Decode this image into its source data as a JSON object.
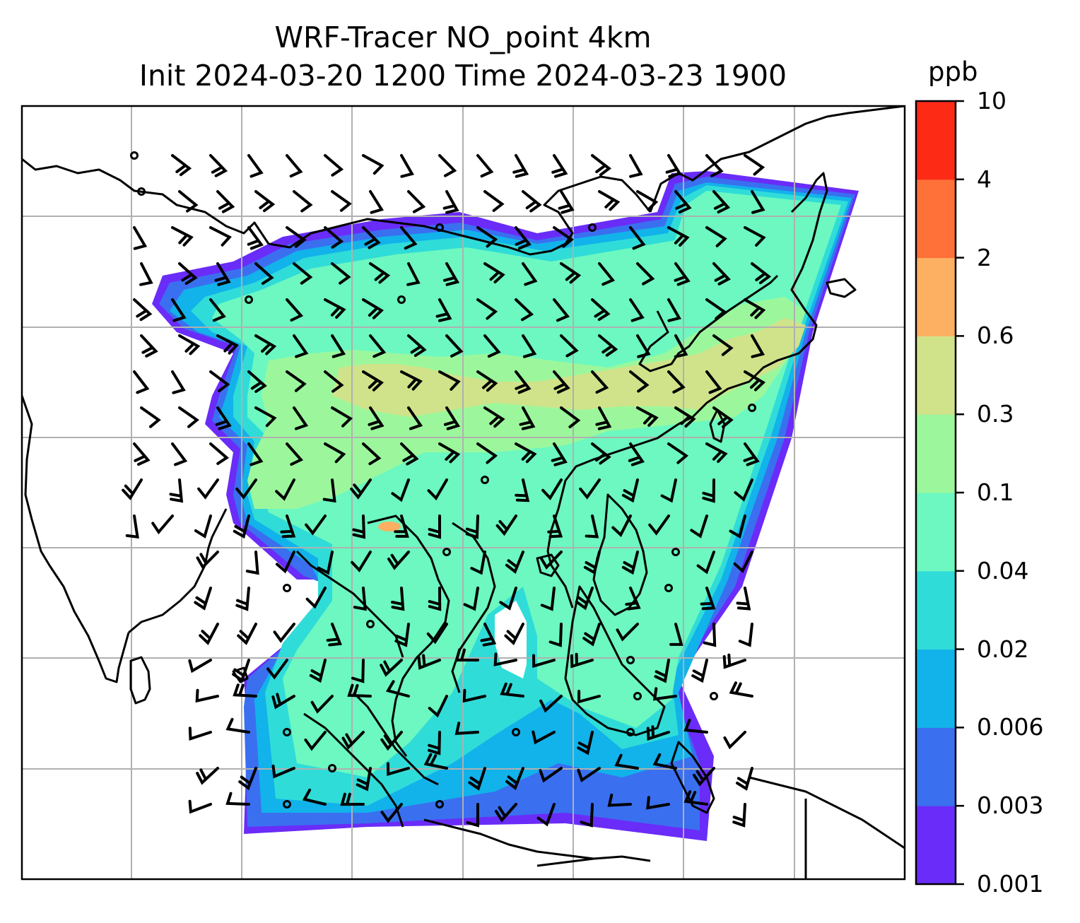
{
  "title": {
    "line1": "WRF-Tracer NO_point 4km",
    "line2": "Init 2024-03-20 1200 Time 2024-03-23 1900"
  },
  "colorbar": {
    "unit": "ppb",
    "ticks": [
      "0.001",
      "0.003",
      "0.006",
      "0.02",
      "0.04",
      "0.1",
      "0.3",
      "0.6",
      "2",
      "4",
      "10"
    ],
    "colors": [
      "#6a2cf8",
      "#3a6ff0",
      "#12b2ea",
      "#30dcd8",
      "#6cf8c0",
      "#9cf79c",
      "#d0e38a",
      "#fdb062",
      "#ff7138",
      "#fd2a16"
    ]
  },
  "map": {
    "field": "NO_point tracer concentration",
    "overlays": [
      "coastlines",
      "gridlines",
      "wind-barbs",
      "calm-wind-circles"
    ],
    "colors": {
      "coast": "#000000",
      "grid": "#b0b0b0",
      "barb": "#000000"
    }
  }
}
